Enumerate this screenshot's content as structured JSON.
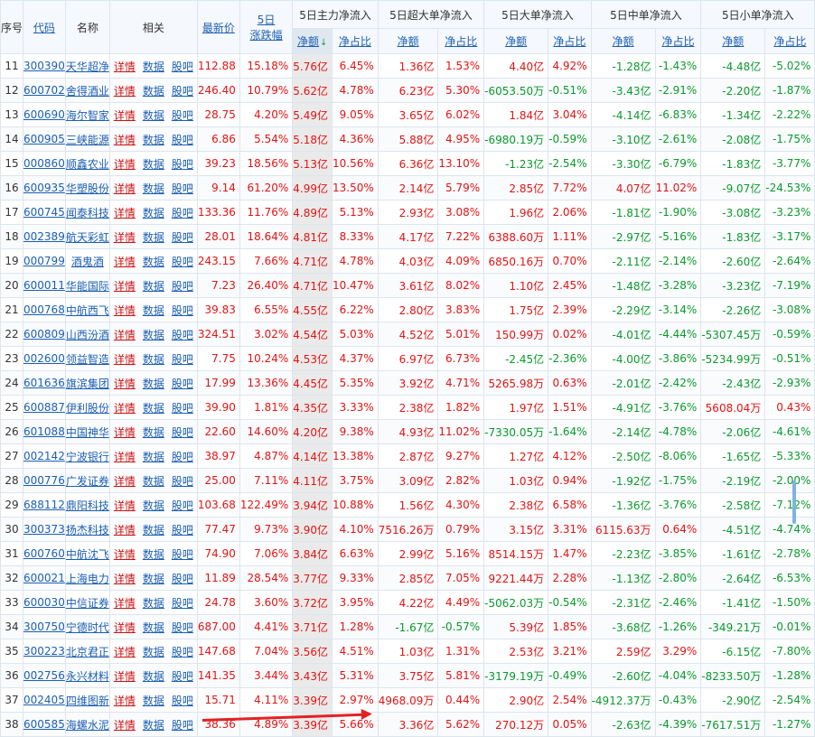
{
  "header": {
    "seq": "序号",
    "code": "代码",
    "name": "名称",
    "related": "相关",
    "price": "最新价",
    "chg5_line1": "5日",
    "chg5_line2": "涨跌幅",
    "groups": [
      "5日主力净流入",
      "5日超大单净流入",
      "5日大单净流入",
      "5日中单净流入",
      "5日小单净流入"
    ],
    "sub_amount": "净额",
    "sub_ratio": "净占比",
    "sort_arrow": "↓"
  },
  "links": {
    "detail": "详情",
    "data": "数据",
    "forum": "股吧"
  },
  "colors": {
    "up": "#e41313",
    "down": "#0a9a2c",
    "link": "#1c5fb3",
    "header_bg": "#f5f8fc"
  },
  "rows": [
    {
      "seq": "11",
      "code": "300390",
      "name": "天华超净",
      "price": "112.88",
      "chg": "15.18%",
      "cells": [
        "5.76亿",
        "6.45%",
        "1.36亿",
        "1.53%",
        "4.40亿",
        "4.92%",
        "-1.28亿",
        "-1.43%",
        "-4.48亿",
        "-5.02%"
      ]
    },
    {
      "seq": "12",
      "code": "600702",
      "name": "舍得酒业",
      "price": "246.40",
      "chg": "10.79%",
      "cells": [
        "5.62亿",
        "4.78%",
        "6.23亿",
        "5.30%",
        "-6053.50万",
        "-0.51%",
        "-3.43亿",
        "-2.91%",
        "-2.20亿",
        "-1.87%"
      ]
    },
    {
      "seq": "13",
      "code": "600690",
      "name": "海尔智家",
      "price": "28.75",
      "chg": "4.20%",
      "cells": [
        "5.49亿",
        "9.05%",
        "3.65亿",
        "6.02%",
        "1.84亿",
        "3.04%",
        "-4.14亿",
        "-6.83%",
        "-1.34亿",
        "-2.22%"
      ]
    },
    {
      "seq": "14",
      "code": "600905",
      "name": "三峡能源",
      "price": "6.86",
      "chg": "5.54%",
      "cells": [
        "5.18亿",
        "4.36%",
        "5.88亿",
        "4.95%",
        "-6980.19万",
        "-0.59%",
        "-3.10亿",
        "-2.61%",
        "-2.08亿",
        "-1.75%"
      ]
    },
    {
      "seq": "15",
      "code": "000860",
      "name": "顺鑫农业",
      "price": "39.23",
      "chg": "18.56%",
      "cells": [
        "5.13亿",
        "10.56%",
        "6.36亿",
        "13.10%",
        "-1.23亿",
        "-2.54%",
        "-3.30亿",
        "-6.79%",
        "-1.83亿",
        "-3.77%"
      ]
    },
    {
      "seq": "16",
      "code": "600935",
      "name": "华塑股份",
      "price": "9.14",
      "chg": "61.20%",
      "cells": [
        "4.99亿",
        "13.50%",
        "2.14亿",
        "5.79%",
        "2.85亿",
        "7.72%",
        "4.07亿",
        "11.02%",
        "-9.07亿",
        "-24.53%"
      ]
    },
    {
      "seq": "17",
      "code": "600745",
      "name": "闻泰科技",
      "price": "133.36",
      "chg": "11.76%",
      "cells": [
        "4.89亿",
        "5.13%",
        "2.93亿",
        "3.08%",
        "1.96亿",
        "2.06%",
        "-1.81亿",
        "-1.90%",
        "-3.08亿",
        "-3.23%"
      ]
    },
    {
      "seq": "18",
      "code": "002389",
      "name": "航天彩虹",
      "price": "28.01",
      "chg": "18.64%",
      "cells": [
        "4.81亿",
        "8.33%",
        "4.17亿",
        "7.22%",
        "6388.60万",
        "1.11%",
        "-2.97亿",
        "-5.16%",
        "-1.83亿",
        "-3.17%"
      ]
    },
    {
      "seq": "19",
      "code": "000799",
      "name": "酒鬼酒",
      "price": "243.15",
      "chg": "7.66%",
      "cells": [
        "4.71亿",
        "4.78%",
        "4.03亿",
        "4.09%",
        "6850.16万",
        "0.70%",
        "-2.11亿",
        "-2.14%",
        "-2.60亿",
        "-2.64%"
      ]
    },
    {
      "seq": "20",
      "code": "600011",
      "name": "华能国际",
      "price": "7.23",
      "chg": "26.40%",
      "cells": [
        "4.71亿",
        "10.47%",
        "3.61亿",
        "8.02%",
        "1.10亿",
        "2.45%",
        "-1.48亿",
        "-3.28%",
        "-3.23亿",
        "-7.19%"
      ]
    },
    {
      "seq": "21",
      "code": "000768",
      "name": "中航西飞",
      "price": "39.83",
      "chg": "6.55%",
      "cells": [
        "4.55亿",
        "6.22%",
        "2.80亿",
        "3.83%",
        "1.75亿",
        "2.39%",
        "-2.29亿",
        "-3.14%",
        "-2.26亿",
        "-3.08%"
      ]
    },
    {
      "seq": "22",
      "code": "600809",
      "name": "山西汾酒",
      "price": "324.51",
      "chg": "3.02%",
      "cells": [
        "4.54亿",
        "5.03%",
        "4.52亿",
        "5.01%",
        "150.99万",
        "0.02%",
        "-4.01亿",
        "-4.44%",
        "-5307.45万",
        "-0.59%"
      ]
    },
    {
      "seq": "23",
      "code": "002600",
      "name": "领益智造",
      "price": "7.75",
      "chg": "10.24%",
      "cells": [
        "4.53亿",
        "4.37%",
        "6.97亿",
        "6.73%",
        "-2.45亿",
        "-2.36%",
        "-4.00亿",
        "-3.86%",
        "-5234.99万",
        "-0.51%"
      ]
    },
    {
      "seq": "24",
      "code": "601636",
      "name": "旗滨集团",
      "price": "17.99",
      "chg": "13.36%",
      "cells": [
        "4.45亿",
        "5.35%",
        "3.92亿",
        "4.71%",
        "5265.98万",
        "0.63%",
        "-2.01亿",
        "-2.42%",
        "-2.43亿",
        "-2.93%"
      ]
    },
    {
      "seq": "25",
      "code": "600887",
      "name": "伊利股份",
      "price": "39.90",
      "chg": "1.81%",
      "cells": [
        "4.35亿",
        "3.33%",
        "2.38亿",
        "1.82%",
        "1.97亿",
        "1.51%",
        "-4.91亿",
        "-3.76%",
        "5608.04万",
        "0.43%"
      ]
    },
    {
      "seq": "26",
      "code": "601088",
      "name": "中国神华",
      "price": "22.60",
      "chg": "14.60%",
      "cells": [
        "4.20亿",
        "9.38%",
        "4.93亿",
        "11.02%",
        "-7330.05万",
        "-1.64%",
        "-2.14亿",
        "-4.78%",
        "-2.06亿",
        "-4.61%"
      ]
    },
    {
      "seq": "27",
      "code": "002142",
      "name": "宁波银行",
      "price": "38.97",
      "chg": "4.87%",
      "cells": [
        "4.14亿",
        "13.38%",
        "2.87亿",
        "9.27%",
        "1.27亿",
        "4.12%",
        "-2.50亿",
        "-8.06%",
        "-1.65亿",
        "-5.33%"
      ]
    },
    {
      "seq": "28",
      "code": "000776",
      "name": "广发证券",
      "price": "25.00",
      "chg": "7.11%",
      "cells": [
        "4.11亿",
        "3.75%",
        "3.09亿",
        "2.82%",
        "1.03亿",
        "0.94%",
        "-1.92亿",
        "-1.75%",
        "-2.19亿",
        "-2.00%"
      ]
    },
    {
      "seq": "29",
      "code": "688112",
      "name": "鼎阳科技",
      "price": "103.68",
      "chg": "122.49%",
      "cells": [
        "3.94亿",
        "10.88%",
        "1.56亿",
        "4.30%",
        "2.38亿",
        "6.58%",
        "-1.36亿",
        "-3.76%",
        "-2.58亿",
        "-7.12%"
      ]
    },
    {
      "seq": "30",
      "code": "300373",
      "name": "扬杰科技",
      "price": "77.47",
      "chg": "9.73%",
      "cells": [
        "3.90亿",
        "4.10%",
        "7516.26万",
        "0.79%",
        "3.15亿",
        "3.31%",
        "6115.63万",
        "0.64%",
        "-4.51亿",
        "-4.74%"
      ]
    },
    {
      "seq": "31",
      "code": "600760",
      "name": "中航沈飞",
      "price": "74.90",
      "chg": "7.06%",
      "cells": [
        "3.84亿",
        "6.63%",
        "2.99亿",
        "5.16%",
        "8514.15万",
        "1.47%",
        "-2.23亿",
        "-3.85%",
        "-1.61亿",
        "-2.78%"
      ]
    },
    {
      "seq": "32",
      "code": "600021",
      "name": "上海电力",
      "price": "11.89",
      "chg": "28.54%",
      "cells": [
        "3.77亿",
        "9.33%",
        "2.85亿",
        "7.05%",
        "9221.44万",
        "2.28%",
        "-1.13亿",
        "-2.80%",
        "-2.64亿",
        "-6.53%"
      ]
    },
    {
      "seq": "33",
      "code": "600030",
      "name": "中信证券",
      "price": "24.78",
      "chg": "3.60%",
      "cells": [
        "3.72亿",
        "3.95%",
        "4.22亿",
        "4.49%",
        "-5062.03万",
        "-0.54%",
        "-2.31亿",
        "-2.46%",
        "-1.41亿",
        "-1.50%"
      ]
    },
    {
      "seq": "34",
      "code": "300750",
      "name": "宁德时代",
      "price": "687.00",
      "chg": "4.41%",
      "cells": [
        "3.71亿",
        "1.28%",
        "-1.67亿",
        "-0.57%",
        "5.39亿",
        "1.85%",
        "-3.68亿",
        "-1.26%",
        "-349.21万",
        "-0.01%"
      ]
    },
    {
      "seq": "35",
      "code": "300223",
      "name": "北京君正",
      "price": "147.68",
      "chg": "7.04%",
      "cells": [
        "3.56亿",
        "4.51%",
        "1.03亿",
        "1.31%",
        "2.53亿",
        "3.21%",
        "2.59亿",
        "3.29%",
        "-6.15亿",
        "-7.80%"
      ]
    },
    {
      "seq": "36",
      "code": "002756",
      "name": "永兴材料",
      "price": "141.35",
      "chg": "3.44%",
      "cells": [
        "3.43亿",
        "5.31%",
        "3.75亿",
        "5.81%",
        "-3179.19万",
        "-0.49%",
        "-2.60亿",
        "-4.04%",
        "-8233.50万",
        "-1.28%"
      ]
    },
    {
      "seq": "37",
      "code": "002405",
      "name": "四维图新",
      "price": "15.71",
      "chg": "4.11%",
      "cells": [
        "3.39亿",
        "2.97%",
        "4968.09万",
        "0.44%",
        "2.90亿",
        "2.54%",
        "-4912.37万",
        "-0.43%",
        "-2.90亿",
        "-2.54%"
      ]
    },
    {
      "seq": "38",
      "code": "600585",
      "name": "海螺水泥",
      "price": "38.36",
      "chg": "4.89%",
      "cells": [
        "3.39亿",
        "5.66%",
        "3.36亿",
        "5.62%",
        "270.12万",
        "0.05%",
        "-2.63亿",
        "-4.39%",
        "-7617.51万",
        "-1.27%"
      ]
    }
  ]
}
